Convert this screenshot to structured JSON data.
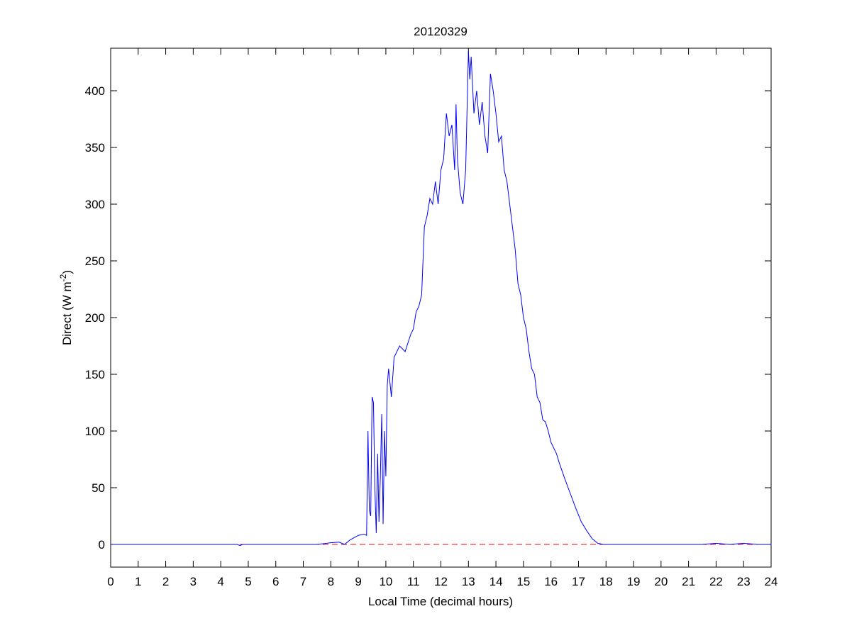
{
  "chart_data": {
    "type": "line",
    "title": "20120329",
    "xlabel": "Local Time (decimal hours)",
    "ylabel": [
      "Direct (W m",
      "-2",
      ")"
    ],
    "xlim": [
      0,
      24
    ],
    "xticks": [
      0,
      1,
      2,
      3,
      4,
      5,
      6,
      7,
      8,
      9,
      10,
      11,
      12,
      13,
      14,
      15,
      16,
      17,
      18,
      19,
      20,
      21,
      22,
      23,
      24
    ],
    "ylim": [
      -20,
      437.5
    ],
    "yticks": [
      0,
      50,
      100,
      150,
      200,
      250,
      300,
      350,
      400
    ],
    "reference_line": {
      "value": 0,
      "color": "#ff0000",
      "style": "dashed"
    },
    "series": [
      {
        "color": "#0000ff",
        "x": [
          0,
          4.6,
          4.7,
          4.8,
          7.5,
          8,
          8.3,
          8.5,
          8.7,
          9,
          9.2,
          9.3,
          9.35,
          9.4,
          9.45,
          9.5,
          9.55,
          9.6,
          9.65,
          9.7,
          9.75,
          9.8,
          9.85,
          9.9,
          9.95,
          10,
          10.05,
          10.1,
          10.2,
          10.3,
          10.5,
          10.7,
          10.9,
          11,
          11.1,
          11.2,
          11.3,
          11.4,
          11.5,
          11.6,
          11.7,
          11.8,
          11.9,
          12,
          12.1,
          12.2,
          12.3,
          12.4,
          12.5,
          12.55,
          12.6,
          12.7,
          12.8,
          12.9,
          13,
          13.05,
          13.1,
          13.2,
          13.3,
          13.4,
          13.5,
          13.6,
          13.7,
          13.8,
          13.9,
          14,
          14.1,
          14.2,
          14.3,
          14.4,
          14.5,
          14.6,
          14.7,
          14.8,
          14.9,
          15,
          15.1,
          15.2,
          15.3,
          15.4,
          15.5,
          15.6,
          15.7,
          15.8,
          15.9,
          16,
          16.2,
          16.3,
          16.5,
          16.7,
          16.9,
          17.1,
          17.3,
          17.5,
          17.7,
          17.9,
          21.5,
          22,
          22.5,
          23,
          23.5,
          24
        ],
        "values": [
          0,
          0,
          -1,
          0,
          0,
          1.5,
          2,
          0,
          4,
          8,
          9,
          8,
          100,
          30,
          25,
          130,
          125,
          50,
          10,
          80,
          20,
          60,
          115,
          18,
          100,
          60,
          140,
          155,
          130,
          165,
          175,
          170,
          185,
          190,
          205,
          210,
          220,
          280,
          290,
          305,
          300,
          320,
          300,
          330,
          340,
          380,
          360,
          370,
          330,
          388,
          340,
          310,
          300,
          330,
          435,
          410,
          430,
          380,
          400,
          370,
          390,
          360,
          345,
          415,
          400,
          380,
          355,
          360,
          330,
          320,
          300,
          280,
          260,
          230,
          220,
          200,
          190,
          170,
          155,
          150,
          130,
          125,
          110,
          108,
          100,
          90,
          80,
          72,
          58,
          45,
          32,
          20,
          12,
          5,
          1,
          0,
          0,
          1,
          0,
          1,
          0,
          0
        ]
      }
    ]
  }
}
